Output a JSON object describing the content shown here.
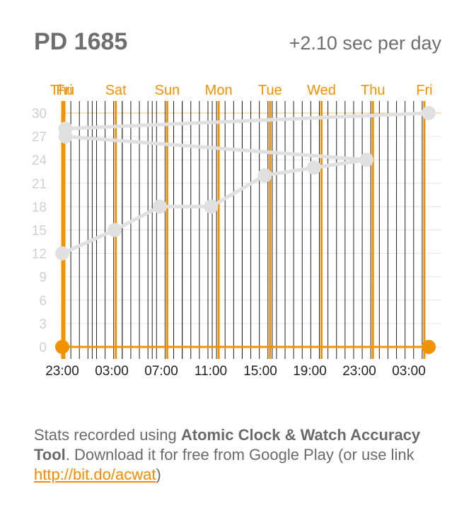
{
  "header": {
    "title": "PD 1685",
    "rate": "+2.10 sec per day"
  },
  "chart_data": {
    "type": "line",
    "x_tick_labels": [
      "23:00",
      "03:00",
      "07:00",
      "11:00",
      "15:00",
      "19:00",
      "23:00",
      "03:00"
    ],
    "day_labels": [
      "Thu",
      "Fri",
      "Sat",
      "Sun",
      "Mon",
      "Tue",
      "Wed",
      "Thu",
      "Fri"
    ],
    "x": [
      "Thu 23:00",
      "Fri 23:30",
      "Sat 20:30",
      "Sun 20:30",
      "Mon 21:30",
      "Tue 20:30",
      "Wed 21:00",
      "Fri 00:30",
      "Fri 00:30",
      "Sat 02:00"
    ],
    "y": [
      12,
      15,
      18,
      18,
      22,
      23,
      24,
      27,
      28,
      30
    ],
    "y_ticks": [
      0,
      3,
      6,
      9,
      12,
      15,
      18,
      21,
      24,
      27,
      30
    ],
    "ylim": [
      0,
      30
    ],
    "grid": true,
    "colors": {
      "line": "#e0e0e0",
      "day_marker": "#f39200",
      "tick_line": "#222222",
      "grid": "#e6e6e6",
      "axis_label": "#d0d0d0"
    }
  },
  "footer": {
    "text_before": "Stats recorded using ",
    "app_name": "Atomic Clock & Watch Accuracy Tool",
    "text_middle": ". Download it for free from Google Play (or use link ",
    "link": "http://bit.do/acwat",
    "text_after": ")"
  }
}
